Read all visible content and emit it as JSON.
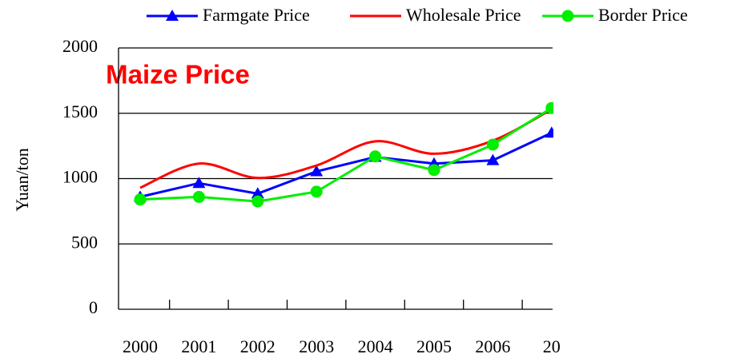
{
  "chart_data": {
    "type": "line",
    "title": "Maize Price",
    "ylabel": "Yuan/ton",
    "categories": [
      "2000",
      "2001",
      "2002",
      "2003",
      "2004",
      "2005",
      "2006",
      "20"
    ],
    "series": [
      {
        "name": "Farmgate Price",
        "color": "#0000ff",
        "marker": "triangle",
        "values": [
          860,
          965,
          885,
          1055,
          1165,
          1115,
          1140,
          1350
        ]
      },
      {
        "name": "Wholesale Price",
        "color": "#ff0000",
        "marker": "none",
        "values": [
          930,
          1115,
          1005,
          1100,
          1285,
          1190,
          1290,
          1530
        ]
      },
      {
        "name": "Border Price",
        "color": "#00ee00",
        "marker": "circle",
        "values": [
          840,
          860,
          825,
          900,
          1170,
          1065,
          1260,
          1540
        ]
      }
    ],
    "ylim": [
      0,
      2000
    ],
    "yticks": [
      0,
      500,
      1000,
      1500,
      2000
    ],
    "grid": true,
    "legend": "top"
  }
}
